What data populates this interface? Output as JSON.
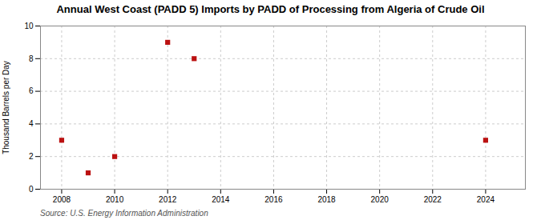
{
  "chart_data": {
    "type": "scatter",
    "title": "Annual West Coast (PADD 5) Imports by PADD of Processing from Algeria of Crude Oil",
    "ylabel": "Thousand Barrels per Day",
    "source": "Source: U.S. Energy Information Administration",
    "x": [
      2008,
      2009,
      2010,
      2012,
      2013,
      2024
    ],
    "values": [
      3,
      1,
      2,
      9,
      8,
      3
    ],
    "xlim": [
      2007.2,
      2025.5
    ],
    "ylim": [
      0,
      10
    ],
    "xticks": [
      2008,
      2010,
      2012,
      2014,
      2016,
      2018,
      2020,
      2022,
      2024
    ],
    "yticks": [
      0,
      2,
      4,
      6,
      8,
      10
    ],
    "color": "#bb1111",
    "marker": "square",
    "grid": true
  }
}
